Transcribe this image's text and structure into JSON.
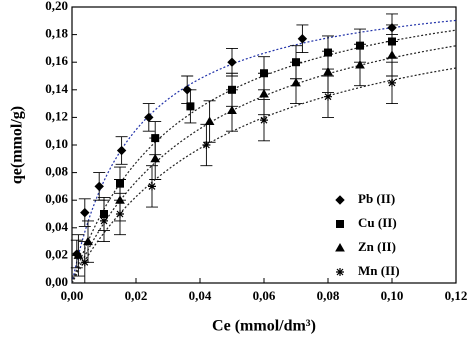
{
  "chart_data": {
    "type": "scatter",
    "xlabel": "Ce (mmol/dm³)",
    "ylabel": "qe(mmol/g)",
    "xlim": [
      0,
      0.12
    ],
    "ylim": [
      0,
      0.2
    ],
    "xticks": [
      {
        "value": 0,
        "label": "0,00"
      },
      {
        "value": 0.02,
        "label": "0,02"
      },
      {
        "value": 0.04,
        "label": "0,04"
      },
      {
        "value": 0.06,
        "label": "0,06"
      },
      {
        "value": 0.08,
        "label": "0,08"
      },
      {
        "value": 0.1,
        "label": "0,10"
      },
      {
        "value": 0.12,
        "label": "0,12"
      }
    ],
    "yticks": [
      {
        "value": 0,
        "label": "0,00"
      },
      {
        "value": 0.02,
        "label": "0,02"
      },
      {
        "value": 0.04,
        "label": "0,04"
      },
      {
        "value": 0.06,
        "label": "0,06"
      },
      {
        "value": 0.08,
        "label": "0,08"
      },
      {
        "value": 0.1,
        "label": "0,10"
      },
      {
        "value": 0.12,
        "label": "0,12"
      },
      {
        "value": 0.14,
        "label": "0,14"
      },
      {
        "value": 0.16,
        "label": "0,16"
      },
      {
        "value": 0.18,
        "label": "0,18"
      },
      {
        "value": 0.2,
        "label": "0,20"
      }
    ],
    "legend": "lower right",
    "series": [
      {
        "name": "Pb (II)",
        "marker": "diamond",
        "color": "#000000",
        "fit_color": "#2233aa",
        "error": 0.01,
        "x": [
          0.0015,
          0.004,
          0.0085,
          0.0155,
          0.024,
          0.036,
          0.05,
          0.072,
          0.1
        ],
        "values": [
          0.021,
          0.051,
          0.07,
          0.096,
          0.12,
          0.14,
          0.16,
          0.177,
          0.185
        ],
        "fit": {
          "qmax": 0.222,
          "K": 50
        }
      },
      {
        "name": "Cu (II)",
        "marker": "square",
        "color": "#000000",
        "fit_color": "#222222",
        "error": 0.012,
        "x": [
          0.01,
          0.015,
          0.026,
          0.037,
          0.05,
          0.06,
          0.07,
          0.08,
          0.09,
          0.1
        ],
        "values": [
          0.05,
          0.072,
          0.105,
          0.128,
          0.14,
          0.152,
          0.16,
          0.167,
          0.172,
          0.175
        ],
        "fit": {
          "qmax": 0.235,
          "K": 29.5
        }
      },
      {
        "name": "Zn (II)",
        "marker": "triangle",
        "color": "#000000",
        "fit_color": "#222222",
        "error": 0.015,
        "x": [
          0.002,
          0.005,
          0.015,
          0.026,
          0.043,
          0.05,
          0.06,
          0.07,
          0.08,
          0.09,
          0.1
        ],
        "values": [
          0.02,
          0.03,
          0.06,
          0.09,
          0.117,
          0.125,
          0.137,
          0.145,
          0.153,
          0.158,
          0.165
        ],
        "fit": {
          "qmax": 0.235,
          "K": 22.7
        }
      },
      {
        "name": "Mn (II)",
        "marker": "asterisk",
        "color": "#000000",
        "fit_color": "#222222",
        "error": 0.015,
        "x": [
          0.004,
          0.01,
          0.015,
          0.025,
          0.042,
          0.06,
          0.08,
          0.1
        ],
        "values": [
          0.015,
          0.045,
          0.05,
          0.07,
          0.1,
          0.118,
          0.135,
          0.145
        ],
        "fit": {
          "qmax": 0.222,
          "K": 19.6
        }
      }
    ]
  }
}
